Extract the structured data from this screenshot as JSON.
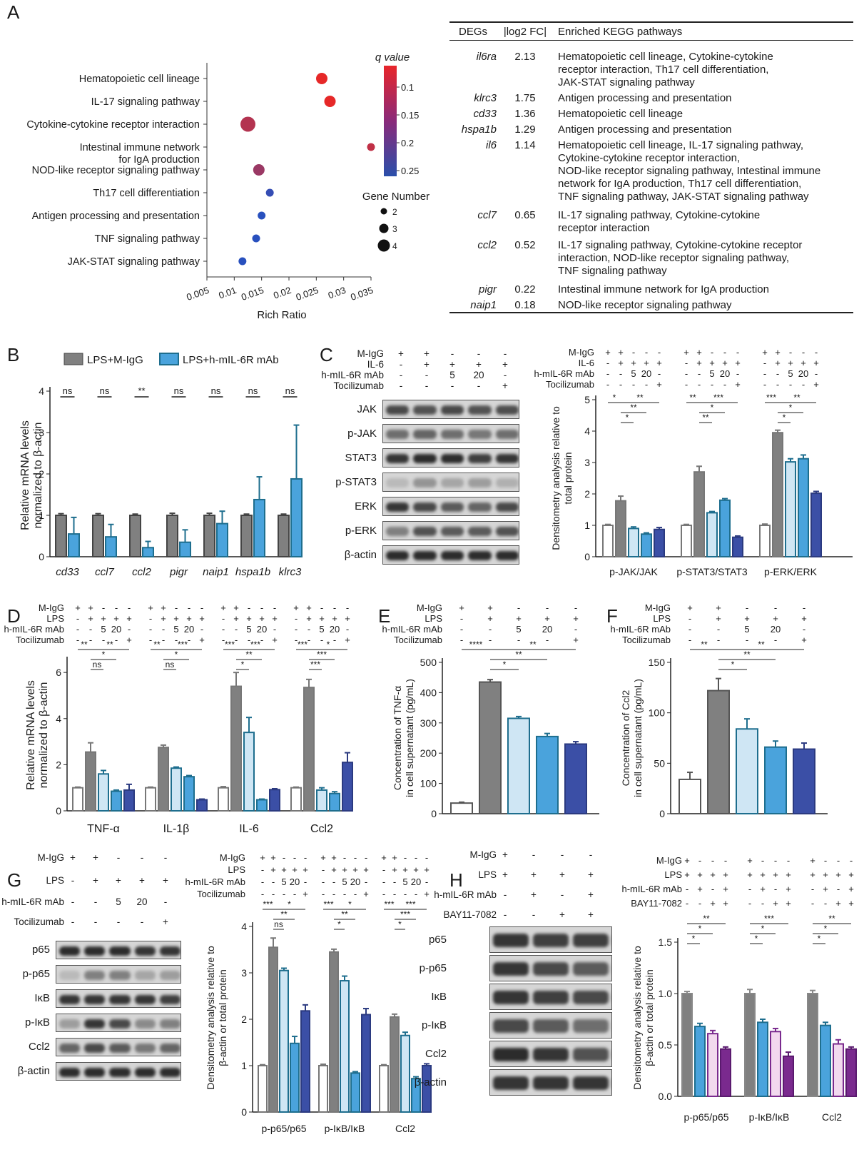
{
  "panels": [
    "A",
    "B",
    "C",
    "D",
    "E",
    "F",
    "G",
    "H"
  ],
  "chart_data": [
    {
      "id": "A-dot",
      "type": "scatter",
      "categories": [
        "Hematopoietic cell lineage",
        "IL-17 signaling pathway",
        "Cytokine-cytokine receptor interaction",
        "Intestinal immune network\nfor IgA production",
        "NOD-like receptor signaling pathway",
        "Th17 cell differentiation",
        "Antigen processing and presentation",
        "TNF signaling pathway",
        "JAK-STAT signaling pathway"
      ],
      "x": [
        0.026,
        0.0275,
        0.0125,
        0.035,
        0.0145,
        0.0165,
        0.015,
        0.014,
        0.0115
      ],
      "gene_number": [
        3,
        3,
        4,
        2,
        3,
        2,
        2,
        2,
        2
      ],
      "q_value": [
        0.1,
        0.1,
        0.14,
        0.13,
        0.16,
        0.24,
        0.25,
        0.25,
        0.25
      ],
      "xlabel": "Rich Ratio",
      "xticks": [
        "0.005",
        "0.01",
        "0.015",
        "0.02",
        "0.025",
        "0.03",
        "0.035"
      ],
      "xlim": [
        0.005,
        0.035
      ],
      "colorbar_title": "q value",
      "colorbar_ticks": [
        "0.1",
        "0.15",
        "0.2",
        "0.25"
      ],
      "size_legend_title": "Gene Number",
      "size_legend": [
        "2",
        "3",
        "4"
      ]
    },
    {
      "id": "B",
      "type": "bar",
      "categories": [
        "cd33",
        "ccl7",
        "ccl2",
        "pigr",
        "naip1",
        "hspa1b",
        "klrc3"
      ],
      "series": [
        {
          "name": "LPS+M-IgG",
          "values": [
            1,
            1,
            1,
            1,
            1,
            1,
            1
          ],
          "err": [
            0.04,
            0.04,
            0.03,
            0.05,
            0.05,
            0.03,
            0.03
          ]
        },
        {
          "name": "LPS+h-mIL-6R mAb",
          "values": [
            0.55,
            0.48,
            0.22,
            0.35,
            0.8,
            1.38,
            1.88
          ],
          "err": [
            0.4,
            0.3,
            0.15,
            0.3,
            0.3,
            0.55,
            1.3
          ]
        }
      ],
      "significance": [
        "ns",
        "ns",
        "**",
        "ns",
        "ns",
        "ns",
        "ns"
      ],
      "ylabel": "Relative mRNA levels\nnormalized to β-actin",
      "ylim": [
        0,
        4
      ],
      "yticks": [
        "0",
        "1",
        "2",
        "3",
        "4"
      ]
    },
    {
      "id": "C",
      "type": "bar",
      "groups": [
        "p-JAK/JAK",
        "p-STAT3/STAT3",
        "p-ERK/ERK"
      ],
      "values": [
        [
          1,
          1.78,
          0.9,
          0.72,
          0.87
        ],
        [
          1,
          2.7,
          1.4,
          1.8,
          0.62
        ],
        [
          1,
          3.95,
          3.02,
          3.12,
          2.02
        ]
      ],
      "err": [
        [
          0.03,
          0.15,
          0.05,
          0.04,
          0.06
        ],
        [
          0.03,
          0.18,
          0.04,
          0.05,
          0.04
        ],
        [
          0.04,
          0.08,
          0.1,
          0.12,
          0.06
        ]
      ],
      "sig_top": [
        [
          "*",
          "**"
        ],
        [
          "**",
          "***"
        ],
        [
          "***",
          "**"
        ]
      ],
      "ylabel": "Densitometry analysis relative to\ntotal protein",
      "ylim": [
        0,
        5
      ],
      "yticks": [
        "0",
        "1",
        "2",
        "3",
        "4",
        "5"
      ]
    },
    {
      "id": "D",
      "type": "bar",
      "groups": [
        "TNF-α",
        "IL-1β",
        "IL-6",
        "Ccl2"
      ],
      "values": [
        [
          1,
          2.55,
          1.6,
          0.85,
          0.9
        ],
        [
          1,
          2.75,
          1.85,
          1.48,
          0.48
        ],
        [
          1,
          5.4,
          3.4,
          0.48,
          0.92
        ],
        [
          1,
          5.35,
          0.9,
          0.75,
          2.1
        ]
      ],
      "err": [
        [
          0.03,
          0.4,
          0.15,
          0.05,
          0.25
        ],
        [
          0.03,
          0.1,
          0.05,
          0.05,
          0.03
        ],
        [
          0.05,
          0.6,
          0.65,
          0.03,
          0.04
        ],
        [
          0.03,
          0.35,
          0.1,
          0.08,
          0.42
        ]
      ],
      "ylabel": "Relative mRNA levels\nnormalized to β-actin",
      "ylim": [
        0,
        6.5
      ],
      "yticks": [
        "0",
        "2",
        "4",
        "6"
      ]
    },
    {
      "id": "E",
      "type": "bar",
      "values": [
        35,
        435,
        315,
        255,
        230
      ],
      "err": [
        3,
        8,
        6,
        10,
        8
      ],
      "sig": [
        "****",
        "*",
        "**",
        "**"
      ],
      "ylabel": "Concentration of TNF-α\nin cell supernatant (pg/mL)",
      "ylim": [
        0,
        500
      ],
      "yticks": [
        "0",
        "100",
        "200",
        "300",
        "400",
        "500"
      ]
    },
    {
      "id": "F",
      "type": "bar",
      "values": [
        34,
        122,
        84,
        66,
        64
      ],
      "err": [
        7,
        12,
        10,
        6,
        6
      ],
      "sig": [
        "**",
        "*",
        "**",
        "**"
      ],
      "ylabel": "Concentration of Ccl2\nin cell supernatant (pg/mL)",
      "ylim": [
        0,
        150
      ],
      "yticks": [
        "0",
        "50",
        "100",
        "150"
      ]
    },
    {
      "id": "G",
      "type": "bar",
      "groups": [
        "p-p65/p65",
        "p-IκB/IκB",
        "Ccl2"
      ],
      "values": [
        [
          1,
          3.55,
          3.05,
          1.48,
          2.18
        ],
        [
          1,
          3.45,
          2.83,
          0.84,
          2.1
        ],
        [
          1,
          2.05,
          1.65,
          0.72,
          1.0
        ]
      ],
      "err": [
        [
          0.02,
          0.2,
          0.05,
          0.15,
          0.13
        ],
        [
          0.03,
          0.06,
          0.1,
          0.03,
          0.13
        ],
        [
          0.02,
          0.06,
          0.07,
          0.04,
          0.04
        ]
      ],
      "ylabel": "Densitometry analysis relative to\nβ-actin or total protein",
      "ylim": [
        0,
        4
      ],
      "yticks": [
        "0",
        "1",
        "2",
        "3",
        "4"
      ]
    },
    {
      "id": "H",
      "type": "bar",
      "groups": [
        "p-p65/p65",
        "p-IκB/IκB",
        "Ccl2"
      ],
      "values": [
        [
          1,
          0.68,
          0.61,
          0.46
        ],
        [
          1,
          0.72,
          0.63,
          0.39
        ],
        [
          1,
          0.69,
          0.51,
          0.46
        ]
      ],
      "err": [
        [
          0.02,
          0.03,
          0.03,
          0.02
        ],
        [
          0.04,
          0.03,
          0.03,
          0.04
        ],
        [
          0.03,
          0.03,
          0.04,
          0.02
        ]
      ],
      "ylabel": "Densitometry analysis relative to\nβ-actin or total protein",
      "ylim": [
        0,
        1.5
      ],
      "yticks": [
        "0.0",
        "0.5",
        "1.0",
        "1.5"
      ]
    }
  ],
  "table": {
    "headers": [
      "DEGs",
      "|log2 FC|",
      "Enriched KEGG pathways"
    ],
    "rows": [
      {
        "gene": "il6ra",
        "fc": "2.13",
        "path": "Hematopoietic cell lineage, Cytokine-cytokine\nreceptor interaction, Th17 cell differentiation,\nJAK-STAT signaling pathway"
      },
      {
        "gene": "klrc3",
        "fc": "1.75",
        "path": "Antigen processing and presentation"
      },
      {
        "gene": "cd33",
        "fc": "1.36",
        "path": "Hematopoietic cell lineage"
      },
      {
        "gene": "hspa1b",
        "fc": "1.29",
        "path": "Antigen processing and presentation"
      },
      {
        "gene": "il6",
        "fc": "1.14",
        "path": "Hematopoietic cell lineage, IL-17 signaling pathway,\nCytokine-cytokine receptor interaction,\nNOD-like receptor signaling pathway, Intestinal immune\nnetwork for IgA production, Th17 cell differentiation,\nTNF signaling pathway, JAK-STAT signaling pathway"
      },
      {
        "gene": "ccl7",
        "fc": "0.65",
        "path": "IL-17 signaling pathway, Cytokine-cytokine\nreceptor interaction"
      },
      {
        "gene": "ccl2",
        "fc": "0.52",
        "path": "IL-17 signaling pathway, Cytokine-cytokine receptor\ninteraction, NOD-like receptor signaling pathway,\nTNF signaling pathway"
      },
      {
        "gene": "pigr",
        "fc": "0.22",
        "path": "Intestinal immune network for IgA production"
      },
      {
        "gene": "naip1",
        "fc": "0.18",
        "path": "NOD-like receptor signaling pathway"
      }
    ]
  },
  "blots": {
    "C": {
      "labels": [
        "JAK",
        "p-JAK",
        "STAT3",
        "p-STAT3",
        "ERK",
        "p-ERK",
        "β-actin"
      ]
    },
    "G": {
      "labels": [
        "p65",
        "p-p65",
        "IκB",
        "p-IκB",
        "Ccl2",
        "β-actin"
      ]
    },
    "H": {
      "labels": [
        "p65",
        "p-p65",
        "IκB",
        "p-IκB",
        "Ccl2",
        "β-actin"
      ]
    }
  },
  "conditions": {
    "C_blot": {
      "rows": [
        "M-IgG",
        "IL-6",
        "h-mIL-6R mAb",
        "Tocilizumab"
      ],
      "cells": [
        [
          "+",
          "+",
          "-",
          "-",
          "-"
        ],
        [
          "-",
          "+",
          "+",
          "+",
          "+"
        ],
        [
          "-",
          "-",
          "5",
          "20",
          "-"
        ],
        [
          "-",
          "-",
          "-",
          "-",
          "+"
        ]
      ]
    },
    "CDG_chart": {
      "rows": [
        "M-IgG",
        "IL-6",
        "h-mIL-6R mAb",
        "Tocilizumab"
      ]
    },
    "D": {
      "rows": [
        "M-IgG",
        "LPS",
        "h-mIL-6R mAb",
        "Tocilizumab"
      ],
      "cells": [
        [
          "+",
          "+",
          "-",
          "-",
          "-"
        ],
        [
          "-",
          "+",
          "+",
          "+",
          "+"
        ],
        [
          "-",
          "-",
          "5",
          "20",
          "-"
        ],
        [
          "-",
          "-",
          "-",
          "-",
          "+"
        ]
      ]
    },
    "E": {
      "rows": [
        "M-IgG",
        "LPS",
        "h-mIL-6R mAb",
        "Tocilizumab"
      ]
    },
    "G_blot": {
      "rows": [
        "M-IgG",
        "LPS",
        "h-mIL-6R mAb",
        "Tocilizumab"
      ]
    },
    "G_chart": {
      "rows": [
        "M-IgG",
        "LPS",
        "h-mIL-6R mAb",
        "Tocilizumab"
      ]
    },
    "H_blot": {
      "rows": [
        "M-IgG",
        "LPS",
        "h-mIL-6R mAb",
        "BAY11-7082"
      ],
      "cells": [
        [
          "+",
          "-",
          "-",
          "-"
        ],
        [
          "+",
          "+",
          "+",
          "+"
        ],
        [
          "-",
          "+",
          "-",
          "+"
        ],
        [
          "-",
          "-",
          "+",
          "+"
        ]
      ]
    },
    "H_chart": {
      "rows": [
        "M-IgG",
        "LPS",
        "h-mIL-6R mAb",
        "BAY11-7082"
      ]
    },
    "C_chart_rows2": [
      "M-IgG",
      "IL-6",
      "h-mIL-6R mAb",
      "Tocilizumab"
    ]
  },
  "colors": {
    "igg": "#ffffff",
    "gray": "#808080",
    "light": "#cfe6f4",
    "mid": "#4aa3dc",
    "dark": "#3b4fa6",
    "teal": "#1e6e8e",
    "pink": "#f2d9ee",
    "purple": "#7a2a8e"
  }
}
